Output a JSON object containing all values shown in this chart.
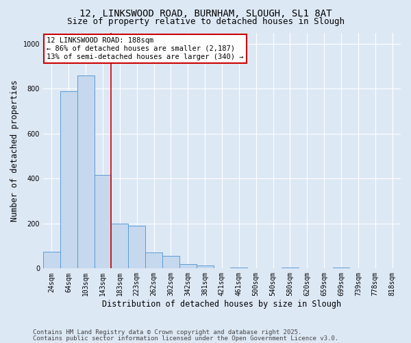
{
  "title_line1": "12, LINKSWOOD ROAD, BURNHAM, SLOUGH, SL1 8AT",
  "title_line2": "Size of property relative to detached houses in Slough",
  "xlabel": "Distribution of detached houses by size in Slough",
  "ylabel": "Number of detached properties",
  "categories": [
    "24sqm",
    "64sqm",
    "103sqm",
    "143sqm",
    "183sqm",
    "223sqm",
    "262sqm",
    "302sqm",
    "342sqm",
    "381sqm",
    "421sqm",
    "461sqm",
    "500sqm",
    "540sqm",
    "580sqm",
    "620sqm",
    "659sqm",
    "699sqm",
    "739sqm",
    "778sqm",
    "818sqm"
  ],
  "values": [
    75,
    790,
    860,
    415,
    200,
    190,
    70,
    55,
    18,
    13,
    0,
    4,
    0,
    0,
    4,
    0,
    0,
    4,
    0,
    0,
    0
  ],
  "bar_color": "#c5d8ed",
  "bar_edge_color": "#5b9bd5",
  "vline_x": 3.5,
  "vline_color": "#cc0000",
  "annotation_text": "12 LINKSWOOD ROAD: 188sqm\n← 86% of detached houses are smaller (2,187)\n13% of semi-detached houses are larger (340) →",
  "annotation_box_facecolor": "#ffffff",
  "annotation_box_edgecolor": "#cc0000",
  "ylim": [
    0,
    1050
  ],
  "yticks": [
    0,
    200,
    400,
    600,
    800,
    1000
  ],
  "footer_line1": "Contains HM Land Registry data © Crown copyright and database right 2025.",
  "footer_line2": "Contains public sector information licensed under the Open Government Licence v3.0.",
  "background_color": "#dde8f5",
  "plot_bg_color": "#dde8f5",
  "grid_color": "#ffffff",
  "title_fontsize": 10,
  "subtitle_fontsize": 9,
  "axis_label_fontsize": 8.5,
  "tick_fontsize": 7,
  "annotation_fontsize": 7.5,
  "footer_fontsize": 6.5
}
